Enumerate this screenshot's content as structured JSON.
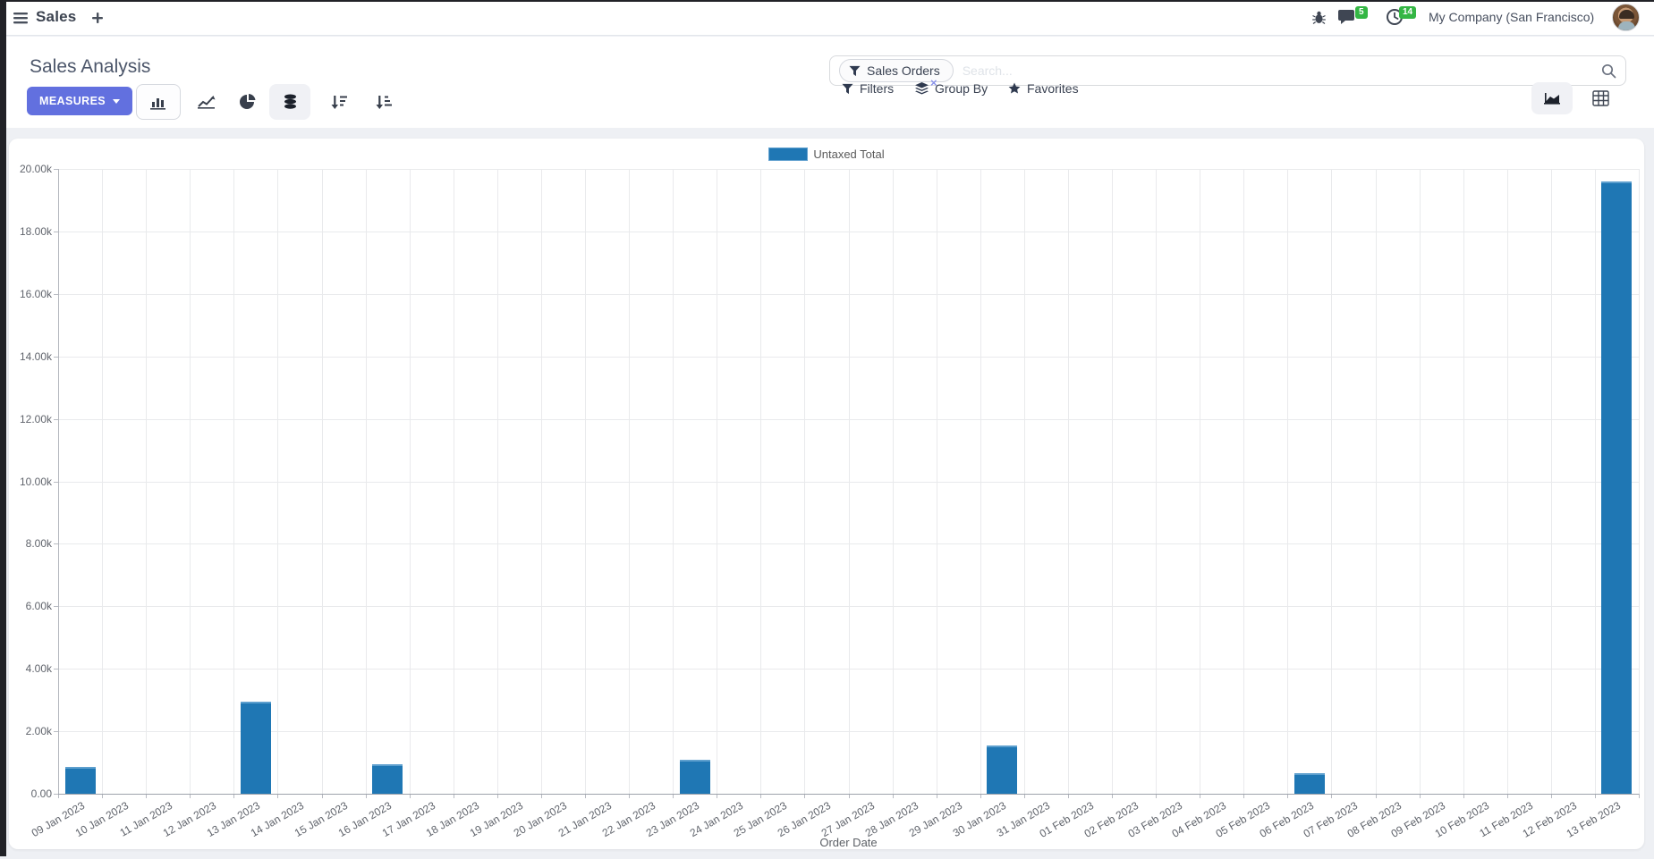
{
  "navbar": {
    "app_name": "Sales",
    "messages_badge": "5",
    "activities_badge": "14",
    "company": "My Company (San Francisco)"
  },
  "control_panel": {
    "title": "Sales Analysis",
    "measures_label": "MEASURES",
    "search_facet": "Sales Orders",
    "search_placeholder": "Search...",
    "facet_remove": "×",
    "filters_label": "Filters",
    "group_by_label": "Group By",
    "favorites_label": "Favorites"
  },
  "chart_data": {
    "type": "bar",
    "title": "",
    "xlabel": "Order Date",
    "ylabel": "",
    "ylim": [
      0,
      20000
    ],
    "ytick_step": 2000,
    "grid": true,
    "legend_position": "top",
    "bar_color": "#1f77b4",
    "categories": [
      "09 Jan 2023",
      "10 Jan 2023",
      "11 Jan 2023",
      "12 Jan 2023",
      "13 Jan 2023",
      "14 Jan 2023",
      "15 Jan 2023",
      "16 Jan 2023",
      "17 Jan 2023",
      "18 Jan 2023",
      "19 Jan 2023",
      "20 Jan 2023",
      "21 Jan 2023",
      "22 Jan 2023",
      "23 Jan 2023",
      "24 Jan 2023",
      "25 Jan 2023",
      "26 Jan 2023",
      "27 Jan 2023",
      "28 Jan 2023",
      "29 Jan 2023",
      "30 Jan 2023",
      "31 Jan 2023",
      "01 Feb 2023",
      "02 Feb 2023",
      "03 Feb 2023",
      "04 Feb 2023",
      "05 Feb 2023",
      "06 Feb 2023",
      "07 Feb 2023",
      "08 Feb 2023",
      "09 Feb 2023",
      "10 Feb 2023",
      "11 Feb 2023",
      "12 Feb 2023",
      "13 Feb 2023"
    ],
    "series": [
      {
        "name": "Untaxed Total",
        "values": [
          850,
          0,
          0,
          0,
          2950,
          0,
          0,
          950,
          0,
          0,
          0,
          0,
          0,
          0,
          1100,
          0,
          0,
          0,
          0,
          0,
          0,
          1550,
          0,
          0,
          0,
          0,
          0,
          0,
          650,
          0,
          0,
          0,
          0,
          0,
          0,
          19600
        ]
      }
    ]
  }
}
